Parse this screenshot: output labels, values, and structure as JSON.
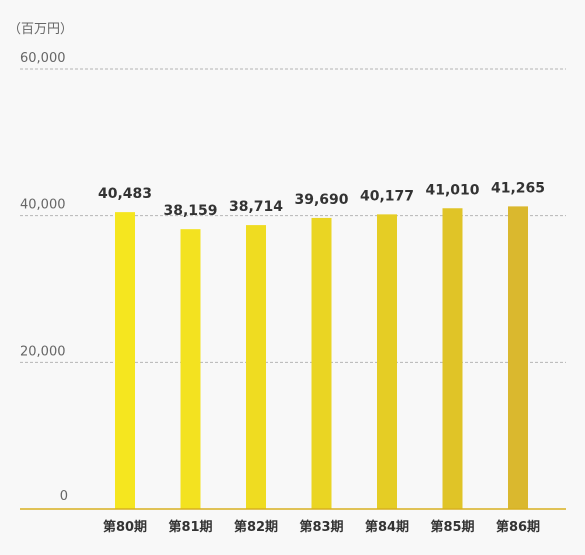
{
  "chart_data": {
    "type": "bar",
    "unit_label": "（百万円）",
    "categories": [
      "第80期",
      "第81期",
      "第82期",
      "第83期",
      "第84期",
      "第85期",
      "第86期"
    ],
    "values": [
      40483,
      38159,
      38714,
      39690,
      40177,
      41010,
      41265
    ],
    "value_labels": [
      "40,483",
      "38,159",
      "38,714",
      "39,690",
      "40,177",
      "41,010",
      "41,265"
    ],
    "yticks": [
      0,
      20000,
      40000,
      60000
    ],
    "ytick_labels": [
      "0",
      "20,000",
      "40,000",
      "60,000"
    ],
    "ylim": [
      0,
      60000
    ],
    "grid": true,
    "bar_colors": [
      "#f5e61f",
      "#f3e220",
      "#efdc21",
      "#ead523",
      "#e5cd25",
      "#e0c427",
      "#dab82e"
    ],
    "baseline_color": "#d7b020"
  }
}
